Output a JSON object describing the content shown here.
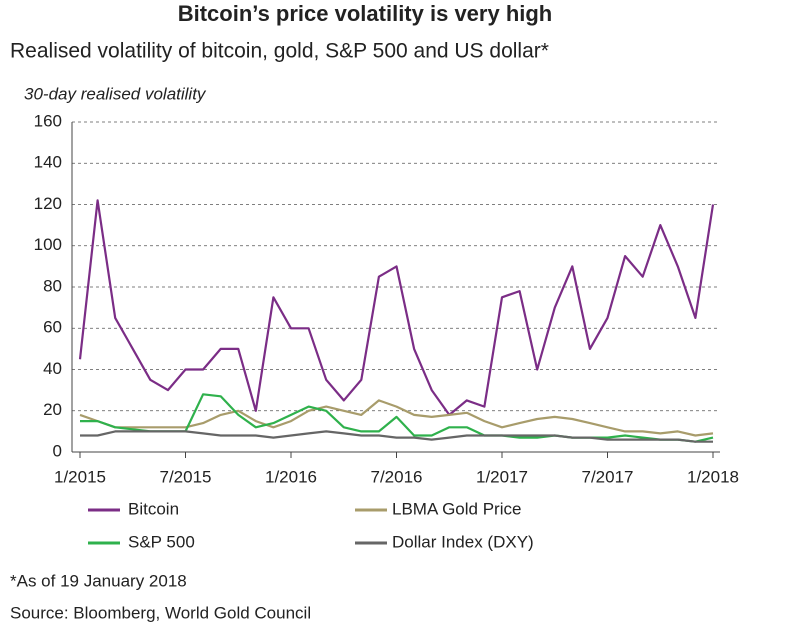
{
  "chart_data": {
    "type": "line",
    "title": "Bitcoin’s price volatility is very high",
    "subtitle": "Realised volatility of bitcoin, gold, S&P 500 and US dollar*",
    "y_label": "30-day realised volatility",
    "notes": [
      "*As of 19 January 2018",
      "Source: Bloomberg, World Gold Council"
    ],
    "x": [
      "2015-01",
      "2015-02",
      "2015-03",
      "2015-04",
      "2015-05",
      "2015-06",
      "2015-07",
      "2015-08",
      "2015-09",
      "2015-10",
      "2015-11",
      "2015-12",
      "2016-01",
      "2016-02",
      "2016-03",
      "2016-04",
      "2016-05",
      "2016-06",
      "2016-07",
      "2016-08",
      "2016-09",
      "2016-10",
      "2016-11",
      "2016-12",
      "2017-01",
      "2017-02",
      "2017-03",
      "2017-04",
      "2017-05",
      "2017-06",
      "2017-07",
      "2017-08",
      "2017-09",
      "2017-10",
      "2017-11",
      "2017-12",
      "2018-01"
    ],
    "series": [
      {
        "name": "Bitcoin",
        "color": "#7b2d86",
        "values": [
          45,
          122,
          65,
          50,
          35,
          30,
          40,
          40,
          50,
          50,
          20,
          75,
          60,
          60,
          35,
          25,
          35,
          85,
          90,
          50,
          30,
          18,
          25,
          22,
          75,
          78,
          40,
          70,
          90,
          50,
          65,
          95,
          85,
          110,
          90,
          65,
          120
        ]
      },
      {
        "name": "LBMA Gold Price",
        "color": "#a89c6b",
        "values": [
          18,
          15,
          12,
          12,
          12,
          12,
          12,
          14,
          18,
          20,
          15,
          12,
          15,
          20,
          22,
          20,
          18,
          25,
          22,
          18,
          17,
          18,
          19,
          15,
          12,
          14,
          16,
          17,
          16,
          14,
          12,
          10,
          10,
          9,
          10,
          8,
          9
        ]
      },
      {
        "name": "S&P 500",
        "color": "#2fb14c",
        "values": [
          15,
          15,
          12,
          11,
          10,
          10,
          10,
          28,
          27,
          18,
          12,
          14,
          18,
          22,
          20,
          12,
          10,
          10,
          17,
          8,
          8,
          12,
          12,
          8,
          8,
          7,
          7,
          8,
          7,
          7,
          7,
          8,
          7,
          6,
          6,
          5,
          7
        ]
      },
      {
        "name": "Dollar Index (DXY)",
        "color": "#666666",
        "values": [
          8,
          8,
          10,
          10,
          10,
          10,
          10,
          9,
          8,
          8,
          8,
          7,
          8,
          9,
          10,
          9,
          8,
          8,
          7,
          7,
          6,
          7,
          8,
          8,
          8,
          8,
          8,
          8,
          7,
          7,
          6,
          6,
          6,
          6,
          6,
          5,
          5
        ]
      }
    ],
    "xlim": [
      "2015-01",
      "2018-01"
    ],
    "xticks": [
      {
        "value": "2015-01",
        "label": "1/2015"
      },
      {
        "value": "2015-07",
        "label": "7/2015"
      },
      {
        "value": "2016-01",
        "label": "1/2016"
      },
      {
        "value": "2016-07",
        "label": "7/2016"
      },
      {
        "value": "2017-01",
        "label": "1/2017"
      },
      {
        "value": "2017-07",
        "label": "7/2017"
      },
      {
        "value": "2018-01",
        "label": "1/2018"
      }
    ],
    "ylim": [
      0,
      160
    ],
    "yticks": [
      0,
      20,
      40,
      60,
      80,
      100,
      120,
      140,
      160
    ],
    "grid": true
  }
}
